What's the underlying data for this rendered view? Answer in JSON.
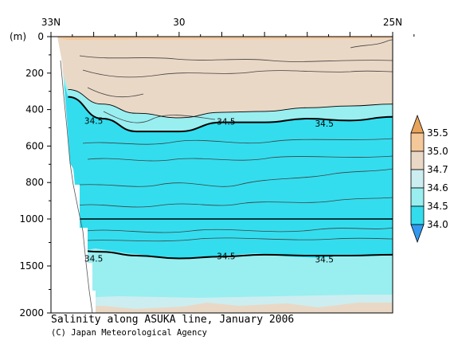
{
  "chart_data": {
    "type": "contour",
    "title": "Salinity along ASUKA line, January 2006",
    "credit": "(C) Japan Meteorological Agency",
    "xaxis": {
      "reversed": true,
      "range": [
        25,
        33
      ],
      "ticks": [
        {
          "value": 33,
          "label": "33N"
        },
        {
          "value": 30,
          "label": "30"
        },
        {
          "value": 25,
          "label": "25N"
        }
      ]
    },
    "yaxis": {
      "unit_label": "(m)",
      "reversed": true,
      "range": [
        0,
        2000
      ],
      "break_at": 1000,
      "ticks": [
        0,
        200,
        400,
        600,
        800,
        1000,
        1500,
        2000
      ]
    },
    "colorbar": {
      "levels": [
        "34.0",
        "34.5",
        "34.6",
        "34.7",
        "35.0",
        "35.5"
      ],
      "colors": {
        "below_34.0": "#3399ee",
        "34.0_34.5": "#33ddee",
        "34.5_34.6": "#99eef0",
        "34.6_34.7": "#cceef0",
        "34.7_35.0": "#ead8c6",
        "35.0_35.5": "#f5c89a",
        "above_35.5": "#e8a45a"
      }
    },
    "series": [
      {
        "level": 35.0,
        "depth_by_lat": [
          [
            25,
            10
          ],
          [
            26,
            12
          ],
          [
            27,
            12
          ],
          [
            28,
            14
          ],
          [
            29,
            14
          ],
          [
            30,
            15
          ],
          [
            31,
            15
          ],
          [
            31.8,
            16
          ],
          [
            32.6,
            18
          ]
        ]
      },
      {
        "level": 34.7,
        "depth_by_lat": [
          [
            25,
            370
          ],
          [
            26,
            380
          ],
          [
            27,
            390
          ],
          [
            28,
            410
          ],
          [
            29,
            415
          ],
          [
            30,
            445
          ],
          [
            31,
            420
          ],
          [
            31.8,
            370
          ],
          [
            32.6,
            290
          ]
        ]
      },
      {
        "level": 34.5,
        "depth_by_lat": [
          [
            25,
            440
          ],
          [
            26,
            460
          ],
          [
            27,
            450
          ],
          [
            28,
            470
          ],
          [
            29,
            470
          ],
          [
            30,
            520
          ],
          [
            31,
            520
          ],
          [
            31.8,
            450
          ],
          [
            32.6,
            330
          ]
        ]
      },
      {
        "level": 34.5,
        "depth_by_lat": [
          [
            25,
            1380
          ],
          [
            26,
            1390
          ],
          [
            27,
            1390
          ],
          [
            28,
            1380
          ],
          [
            29,
            1400
          ],
          [
            30,
            1420
          ],
          [
            31,
            1390
          ],
          [
            31.8,
            1350
          ],
          [
            32.6,
            1330
          ]
        ]
      }
    ],
    "contour_labels": [
      {
        "text": "34.5",
        "lat": 32.0,
        "depth": 460
      },
      {
        "text": "34.5",
        "lat": 28.9,
        "depth": 465
      },
      {
        "text": "34.5",
        "lat": 26.6,
        "depth": 475
      },
      {
        "text": "34.5",
        "lat": 32.0,
        "depth": 1420
      },
      {
        "text": "34.5",
        "lat": 28.9,
        "depth": 1395
      },
      {
        "text": "34.5",
        "lat": 26.6,
        "depth": 1430
      }
    ]
  }
}
